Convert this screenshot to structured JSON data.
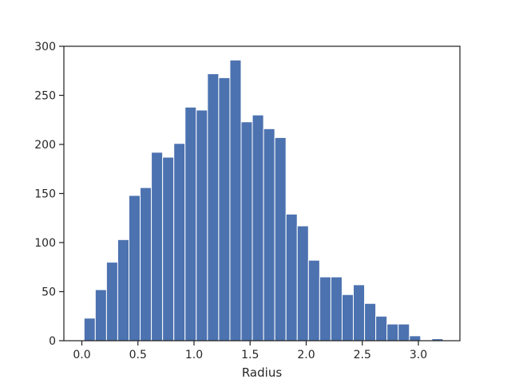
{
  "chart_data": {
    "type": "bar",
    "title": "",
    "xlabel": "Radius",
    "ylabel": "",
    "xlim": [
      -0.16,
      3.37
    ],
    "ylim": [
      0,
      300
    ],
    "grid": false,
    "legend": "none",
    "bar_color": "#4c72b0",
    "bin_width": 0.1,
    "bins": [
      {
        "x0": 0.02,
        "x1": 0.12,
        "count": 23
      },
      {
        "x0": 0.12,
        "x1": 0.22,
        "count": 52
      },
      {
        "x0": 0.22,
        "x1": 0.32,
        "count": 80
      },
      {
        "x0": 0.32,
        "x1": 0.42,
        "count": 103
      },
      {
        "x0": 0.42,
        "x1": 0.52,
        "count": 148
      },
      {
        "x0": 0.52,
        "x1": 0.62,
        "count": 156
      },
      {
        "x0": 0.62,
        "x1": 0.72,
        "count": 192
      },
      {
        "x0": 0.72,
        "x1": 0.82,
        "count": 187
      },
      {
        "x0": 0.82,
        "x1": 0.92,
        "count": 201
      },
      {
        "x0": 0.92,
        "x1": 1.02,
        "count": 238
      },
      {
        "x0": 1.02,
        "x1": 1.12,
        "count": 235
      },
      {
        "x0": 1.12,
        "x1": 1.22,
        "count": 272
      },
      {
        "x0": 1.22,
        "x1": 1.32,
        "count": 268
      },
      {
        "x0": 1.32,
        "x1": 1.42,
        "count": 286
      },
      {
        "x0": 1.42,
        "x1": 1.52,
        "count": 223
      },
      {
        "x0": 1.52,
        "x1": 1.62,
        "count": 230
      },
      {
        "x0": 1.62,
        "x1": 1.72,
        "count": 216
      },
      {
        "x0": 1.72,
        "x1": 1.82,
        "count": 207
      },
      {
        "x0": 1.82,
        "x1": 1.92,
        "count": 129
      },
      {
        "x0": 1.92,
        "x1": 2.02,
        "count": 117
      },
      {
        "x0": 2.02,
        "x1": 2.12,
        "count": 82
      },
      {
        "x0": 2.12,
        "x1": 2.22,
        "count": 65
      },
      {
        "x0": 2.22,
        "x1": 2.32,
        "count": 65
      },
      {
        "x0": 2.32,
        "x1": 2.42,
        "count": 47
      },
      {
        "x0": 2.42,
        "x1": 2.52,
        "count": 57
      },
      {
        "x0": 2.52,
        "x1": 2.62,
        "count": 38
      },
      {
        "x0": 2.62,
        "x1": 2.72,
        "count": 25
      },
      {
        "x0": 2.72,
        "x1": 2.82,
        "count": 17
      },
      {
        "x0": 2.82,
        "x1": 2.92,
        "count": 17
      },
      {
        "x0": 2.92,
        "x1": 3.02,
        "count": 5
      },
      {
        "x0": 3.02,
        "x1": 3.12,
        "count": 0
      },
      {
        "x0": 3.12,
        "x1": 3.22,
        "count": 2
      }
    ],
    "x_ticks": [
      0.0,
      0.5,
      1.0,
      1.5,
      2.0,
      2.5,
      3.0
    ],
    "x_tick_labels": [
      "0.0",
      "0.5",
      "1.0",
      "1.5",
      "2.0",
      "2.5",
      "3.0"
    ],
    "y_ticks": [
      0,
      50,
      100,
      150,
      200,
      250,
      300
    ],
    "y_tick_labels": [
      "0",
      "50",
      "100",
      "150",
      "200",
      "250",
      "300"
    ]
  }
}
